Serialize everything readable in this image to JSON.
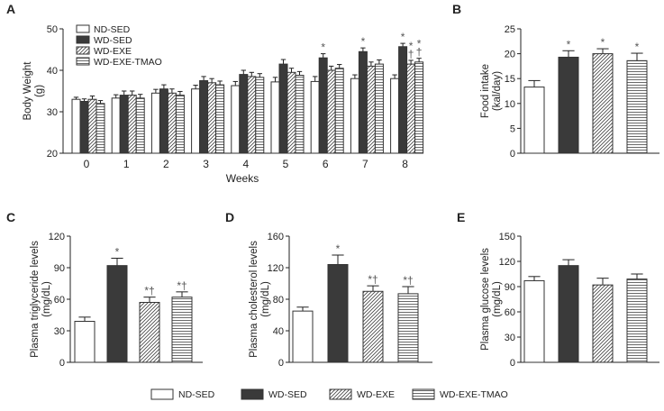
{
  "chart_data": [
    {
      "id": "A",
      "panel_label": "A",
      "type": "bar",
      "xlabel": "Weeks",
      "ylabel_line1": "Body Weight",
      "ylabel_line2": "(g)",
      "ylim": [
        20,
        50
      ],
      "yticks": [
        20,
        30,
        40,
        50
      ],
      "categories": [
        "0",
        "1",
        "2",
        "3",
        "4",
        "5",
        "6",
        "7",
        "8"
      ],
      "series": [
        {
          "name": "ND-SED",
          "style": "white",
          "values": [
            33,
            33.3,
            34.5,
            35.5,
            36.3,
            37.2,
            37.3,
            38,
            38
          ],
          "errors": [
            0.5,
            0.8,
            0.9,
            0.9,
            1.0,
            1.1,
            1.2,
            0.9,
            0.9
          ],
          "sig": [
            "",
            "",
            "",
            "",
            "",
            "",
            "",
            "",
            ""
          ]
        },
        {
          "name": "WD-SED",
          "style": "dark",
          "values": [
            32.5,
            34,
            35.5,
            37.5,
            39,
            41.5,
            43,
            44.5,
            45.7
          ],
          "errors": [
            0.6,
            1.0,
            1.0,
            1.0,
            1.0,
            1.1,
            1.0,
            0.9,
            0.8
          ],
          "sig": [
            "",
            "",
            "",
            "",
            "",
            "",
            "*",
            "*",
            "*"
          ]
        },
        {
          "name": "WD-EXE",
          "style": "diagonal",
          "values": [
            33,
            34,
            34.5,
            37,
            38.5,
            39.5,
            40,
            41,
            41.5
          ],
          "errors": [
            0.8,
            1.0,
            1.0,
            1.0,
            1.0,
            1.0,
            1.0,
            1.0,
            0.9
          ],
          "sig": [
            "",
            "",
            "",
            "",
            "",
            "",
            "",
            "",
            "*†"
          ]
        },
        {
          "name": "WD-EXE-TMAO",
          "style": "horizontal",
          "values": [
            32,
            33.3,
            34,
            36.5,
            38.3,
            38.8,
            40.5,
            41.5,
            42
          ],
          "errors": [
            0.7,
            0.9,
            0.9,
            0.9,
            0.9,
            0.9,
            0.9,
            1.0,
            0.9
          ],
          "sig": [
            "",
            "",
            "",
            "",
            "",
            "",
            "",
            "",
            "*†"
          ]
        }
      ],
      "legend": [
        "ND-SED",
        "WD-SED",
        "WD-EXE",
        "WD-EXE-TMAO"
      ]
    },
    {
      "id": "B",
      "panel_label": "B",
      "type": "bar",
      "ylabel_line1": "Food intake",
      "ylabel_line2": "(kal/day)",
      "ylim": [
        0,
        25
      ],
      "yticks": [
        0,
        5,
        10,
        15,
        20,
        25
      ],
      "categories": [
        "ND-SED",
        "WD-SED",
        "WD-EXE",
        "WD-EXE-TMAO"
      ],
      "styles": [
        "white",
        "dark",
        "diagonal",
        "horizontal"
      ],
      "values": [
        13.3,
        19.3,
        20,
        18.6
      ],
      "errors": [
        1.3,
        1.3,
        1.0,
        1.5
      ],
      "sig": [
        "",
        "*",
        "*",
        "*"
      ]
    },
    {
      "id": "C",
      "panel_label": "C",
      "type": "bar",
      "ylabel_line1": "Plasma triglyceride levels",
      "ylabel_line2": "(mg/dL)",
      "ylim": [
        0,
        120
      ],
      "yticks": [
        0,
        30,
        60,
        90,
        120
      ],
      "categories": [
        "ND-SED",
        "WD-SED",
        "WD-EXE",
        "WD-EXE-TMAO"
      ],
      "styles": [
        "white",
        "dark",
        "diagonal",
        "horizontal"
      ],
      "values": [
        39,
        92,
        57,
        62
      ],
      "errors": [
        4,
        7,
        5,
        5
      ],
      "sig": [
        "",
        "*",
        "*†",
        "*†"
      ]
    },
    {
      "id": "D",
      "panel_label": "D",
      "type": "bar",
      "ylabel_line1": "Plasma cholesterol levels",
      "ylabel_line2": "(mg/dL)",
      "ylim": [
        0,
        160
      ],
      "yticks": [
        0,
        40,
        80,
        120,
        160
      ],
      "categories": [
        "ND-SED",
        "WD-SED",
        "WD-EXE",
        "WD-EXE-TMAO"
      ],
      "styles": [
        "white",
        "dark",
        "diagonal",
        "horizontal"
      ],
      "values": [
        65,
        124,
        90,
        87
      ],
      "errors": [
        5,
        12,
        7,
        9
      ],
      "sig": [
        "",
        "*",
        "*†",
        "*†"
      ]
    },
    {
      "id": "E",
      "panel_label": "E",
      "type": "bar",
      "ylabel_line1": "Plasma glucose levels",
      "ylabel_line2": "(mg/dL)",
      "ylim": [
        0,
        150
      ],
      "yticks": [
        0,
        30,
        60,
        90,
        120,
        150
      ],
      "categories": [
        "ND-SED",
        "WD-SED",
        "WD-EXE",
        "WD-EXE-TMAO"
      ],
      "styles": [
        "white",
        "dark",
        "diagonal",
        "horizontal"
      ],
      "values": [
        97,
        115,
        92,
        99
      ],
      "errors": [
        5,
        7,
        8,
        6
      ],
      "sig": [
        "",
        "",
        "",
        ""
      ]
    }
  ],
  "bottom_legend": [
    "ND-SED",
    "WD-SED",
    "WD-EXE",
    "WD-EXE-TMAO"
  ],
  "colors": {
    "dark": "#3a3a3a",
    "stroke": "#333333",
    "pattern": "#444444",
    "sig": "#555555"
  }
}
